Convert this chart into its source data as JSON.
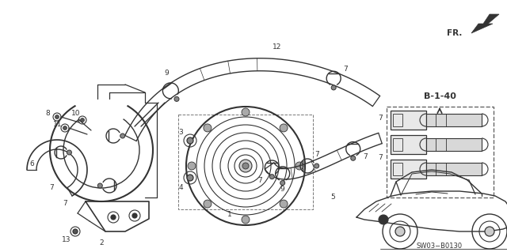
{
  "bg_color": "#ffffff",
  "diagram_code": "SW03−B0130",
  "fr_label": "FR.",
  "b_label": "B-1-40",
  "line_color": "#333333",
  "gray_color": "#888888",
  "figsize": [
    6.4,
    3.19
  ],
  "dpi": 100
}
